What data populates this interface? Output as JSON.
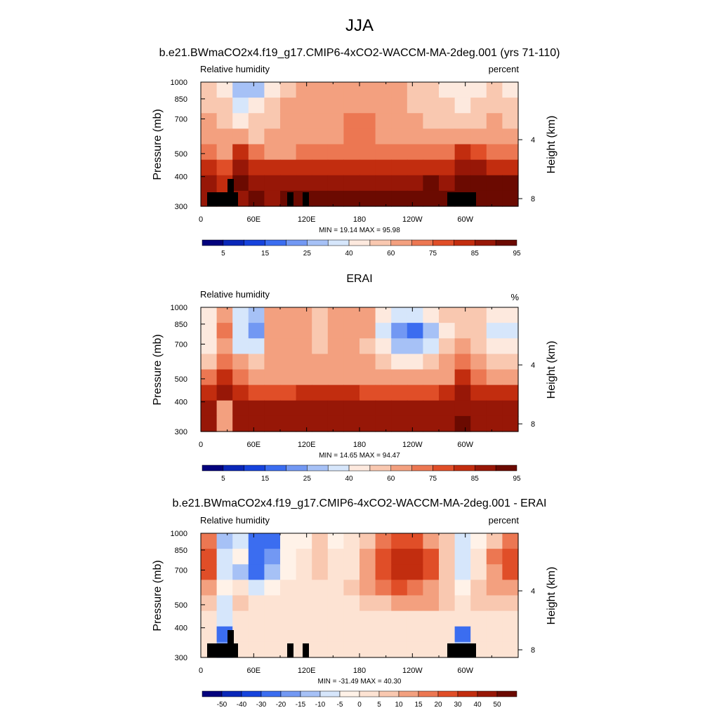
{
  "figure": {
    "title": "JJA"
  },
  "colors": {
    "abs": [
      "#04027d",
      "#0a27b8",
      "#1643dc",
      "#3b6df0",
      "#7298f3",
      "#a6c1f6",
      "#d6e6fb",
      "#fde9de",
      "#f9c8b0",
      "#f3a07f",
      "#ec7752",
      "#e04e28",
      "#c22d0f",
      "#971707",
      "#6b0a01"
    ],
    "diff": [
      "#04027d",
      "#0a27b8",
      "#1643dc",
      "#3b6df0",
      "#7298f3",
      "#a6c1f6",
      "#d6e6fb",
      "#fff2e8",
      "#fde3d3",
      "#f9c8b0",
      "#f3a07f",
      "#ec7752",
      "#e04e28",
      "#c22d0f",
      "#971707",
      "#6b0a01"
    ],
    "land": "#000000"
  },
  "chart_data": [
    {
      "type": "heatmap",
      "title": "b.e21.BWmaCO2x4.f19_g17.CMIP6-4xCO2-WACCM-MA-2deg.001 (yrs 71-110)",
      "left_label": "Relative humidity",
      "right_label": "percent",
      "ylabel": "Pressure (mb)",
      "ylabel_right": "Height (km)",
      "x_ticks": [
        "0",
        "60E",
        "120E",
        "180",
        "120W",
        "60W"
      ],
      "y_ticks": [
        "300",
        "400",
        "500",
        "700",
        "850",
        "1000"
      ],
      "y_ticks_right": [
        "8",
        "4"
      ],
      "xlim": [
        0,
        360
      ],
      "ylim": [
        1000,
        300
      ],
      "stats": "MIN =  19.14  MAX =  95.98",
      "colorbar_labels": [
        "5",
        "15",
        "25",
        "40",
        "60",
        "75",
        "85",
        "95"
      ],
      "values": [
        [
          55,
          45,
          25,
          28,
          45,
          58,
          62,
          60,
          62,
          64,
          66,
          62,
          60,
          56,
          52,
          48,
          46,
          46,
          52,
          48
        ],
        [
          58,
          50,
          32,
          40,
          52,
          60,
          64,
          62,
          64,
          67,
          68,
          64,
          62,
          58,
          54,
          50,
          48,
          50,
          56,
          52
        ],
        [
          62,
          56,
          46,
          50,
          58,
          62,
          66,
          64,
          67,
          72,
          70,
          66,
          64,
          62,
          58,
          56,
          56,
          58,
          60,
          58
        ],
        [
          66,
          62,
          60,
          58,
          62,
          64,
          68,
          66,
          68,
          74,
          72,
          68,
          68,
          66,
          64,
          64,
          68,
          68,
          66,
          66
        ],
        [
          74,
          68,
          80,
          70,
          68,
          68,
          70,
          70,
          70,
          72,
          72,
          70,
          70,
          72,
          72,
          72,
          84,
          78,
          74,
          72
        ],
        [
          84,
          78,
          88,
          84,
          84,
          84,
          84,
          84,
          84,
          84,
          84,
          84,
          84,
          84,
          84,
          84,
          88,
          86,
          84,
          84
        ],
        [
          86,
          84,
          90,
          88,
          88,
          88,
          88,
          88,
          88,
          88,
          88,
          88,
          88,
          88,
          90,
          88,
          90,
          90,
          90,
          90
        ],
        [
          86,
          84,
          88,
          90,
          88,
          90,
          90,
          90,
          90,
          90,
          90,
          90,
          90,
          92,
          95,
          92,
          90,
          92,
          92,
          90
        ]
      ]
    },
    {
      "type": "heatmap",
      "title": "ERAI",
      "left_label": "Relative humidity",
      "right_label": "%",
      "ylabel": "Pressure (mb)",
      "ylabel_right": "Height (km)",
      "x_ticks": [
        "0",
        "60E",
        "120E",
        "180",
        "120W",
        "60W"
      ],
      "y_ticks": [
        "300",
        "400",
        "500",
        "700",
        "850",
        "1000"
      ],
      "y_ticks_right": [
        "8",
        "4"
      ],
      "xlim": [
        0,
        360
      ],
      "ylim": [
        1000,
        300
      ],
      "stats": "MIN =  14.65  MAX =  94.47",
      "colorbar_labels": [
        "5",
        "15",
        "25",
        "40",
        "60",
        "75",
        "85",
        "95"
      ],
      "values": [
        [
          48,
          64,
          36,
          28,
          62,
          68,
          62,
          56,
          64,
          66,
          62,
          44,
          34,
          34,
          42,
          52,
          58,
          56,
          48,
          44
        ],
        [
          46,
          70,
          34,
          22,
          60,
          68,
          64,
          56,
          64,
          66,
          60,
          36,
          22,
          16,
          28,
          48,
          58,
          52,
          38,
          34
        ],
        [
          48,
          68,
          36,
          32,
          60,
          66,
          64,
          56,
          64,
          66,
          58,
          40,
          28,
          26,
          34,
          50,
          62,
          54,
          42,
          40
        ],
        [
          55,
          72,
          62,
          56,
          62,
          64,
          64,
          60,
          64,
          66,
          62,
          52,
          48,
          48,
          52,
          60,
          70,
          62,
          54,
          54
        ],
        [
          70,
          80,
          72,
          66,
          66,
          66,
          68,
          66,
          66,
          68,
          66,
          62,
          60,
          60,
          62,
          66,
          80,
          74,
          66,
          66
        ],
        [
          84,
          86,
          80,
          78,
          78,
          78,
          80,
          80,
          80,
          80,
          78,
          78,
          76,
          76,
          78,
          80,
          86,
          84,
          80,
          80
        ],
        [
          86,
          60,
          88,
          86,
          86,
          86,
          86,
          86,
          86,
          86,
          86,
          86,
          86,
          86,
          86,
          86,
          88,
          86,
          86,
          86
        ],
        [
          86,
          60,
          86,
          86,
          86,
          86,
          86,
          86,
          86,
          86,
          86,
          86,
          86,
          86,
          86,
          86,
          90,
          86,
          86,
          86
        ]
      ]
    },
    {
      "type": "heatmap",
      "title": "b.e21.BWmaCO2x4.f19_g17.CMIP6-4xCO2-WACCM-MA-2deg.001 - ERAI",
      "left_label": "Relative humidity",
      "right_label": "percent",
      "ylabel": "Pressure (mb)",
      "ylabel_right": "Height (km)",
      "x_ticks": [
        "0",
        "60E",
        "120E",
        "180",
        "120W",
        "60W"
      ],
      "y_ticks": [
        "300",
        "400",
        "500",
        "700",
        "850",
        "1000"
      ],
      "y_ticks_right": [
        "8",
        "4"
      ],
      "xlim": [
        0,
        360
      ],
      "ylim": [
        1000,
        300
      ],
      "stats": "MIN = -31.49  MAX =  40.30",
      "colorbar_labels": [
        "-50",
        "-40",
        "-30",
        "-20",
        "-15",
        "-10",
        "-5",
        "0",
        "5",
        "10",
        "15",
        "20",
        "30",
        "40",
        "50"
      ],
      "values": [
        [
          15,
          -15,
          -8,
          -25,
          -22,
          -3,
          -2,
          5,
          -2,
          0,
          8,
          18,
          25,
          22,
          12,
          5,
          -10,
          -5,
          8,
          15
        ],
        [
          20,
          -10,
          -5,
          -30,
          -20,
          -5,
          0,
          5,
          0,
          2,
          10,
          22,
          30,
          32,
          20,
          8,
          -10,
          2,
          15,
          25
        ],
        [
          20,
          -8,
          -12,
          -22,
          -12,
          -3,
          2,
          5,
          2,
          4,
          12,
          24,
          30,
          30,
          22,
          8,
          -8,
          0,
          12,
          20
        ],
        [
          12,
          -5,
          0,
          -8,
          -3,
          0,
          3,
          4,
          3,
          6,
          12,
          18,
          20,
          18,
          14,
          6,
          -5,
          8,
          12,
          12
        ],
        [
          6,
          -8,
          5,
          2,
          2,
          2,
          2,
          4,
          2,
          4,
          6,
          8,
          10,
          12,
          10,
          6,
          4,
          6,
          8,
          6
        ],
        [
          2,
          -10,
          4,
          4,
          4,
          4,
          4,
          4,
          4,
          4,
          4,
          4,
          4,
          4,
          4,
          4,
          2,
          2,
          2,
          2
        ],
        [
          2,
          -30,
          2,
          2,
          2,
          2,
          2,
          2,
          2,
          2,
          2,
          2,
          2,
          2,
          2,
          2,
          -25,
          2,
          2,
          2
        ],
        [
          2,
          -20,
          2,
          2,
          2,
          2,
          2,
          2,
          2,
          2,
          2,
          2,
          2,
          2,
          2,
          2,
          -15,
          2,
          2,
          2
        ]
      ]
    }
  ]
}
